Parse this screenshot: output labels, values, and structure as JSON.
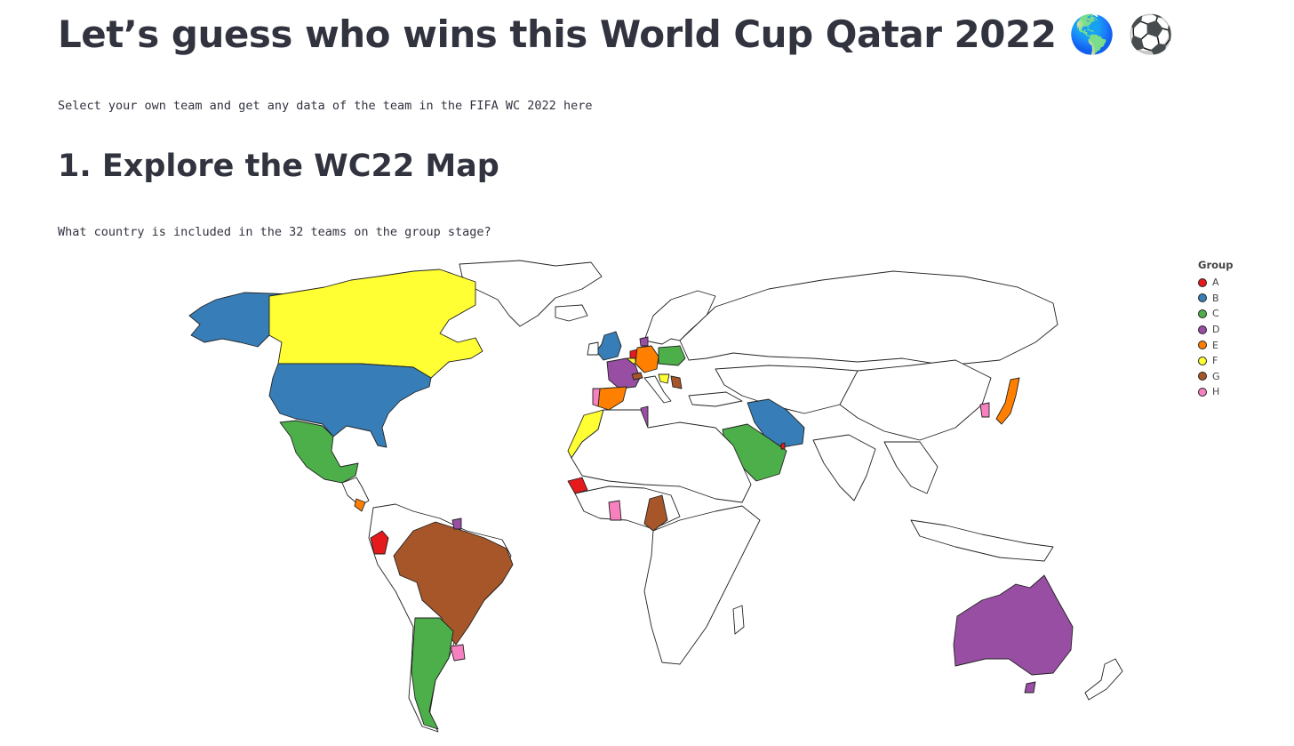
{
  "page": {
    "title": "Let’s guess who wins this World Cup Qatar 2022 🌎 ⚽",
    "intro": "Select your own team and get any data of the team in the FIFA WC 2022 here",
    "section_heading": "1. Explore the WC22 Map",
    "question": "What country is included in the 32 teams on the group stage?"
  },
  "legend": {
    "title": "Group",
    "items": [
      {
        "label": "A",
        "color": "#e41a1c"
      },
      {
        "label": "B",
        "color": "#377eb8"
      },
      {
        "label": "C",
        "color": "#4daf4a"
      },
      {
        "label": "D",
        "color": "#984ea3"
      },
      {
        "label": "E",
        "color": "#ff7f00"
      },
      {
        "label": "F",
        "color": "#ffff33"
      },
      {
        "label": "G",
        "color": "#a65628"
      },
      {
        "label": "H",
        "color": "#f781bf"
      }
    ]
  },
  "map": {
    "type": "choropleth",
    "groups": {
      "A": [
        "Qatar",
        "Ecuador",
        "Senegal",
        "Netherlands"
      ],
      "B": [
        "England",
        "Iran",
        "USA",
        "Wales"
      ],
      "C": [
        "Argentina",
        "Saudi Arabia",
        "Mexico",
        "Poland"
      ],
      "D": [
        "France",
        "Australia",
        "Denmark",
        "Tunisia"
      ],
      "E": [
        "Spain",
        "Costa Rica",
        "Germany",
        "Japan"
      ],
      "F": [
        "Belgium",
        "Canada",
        "Morocco",
        "Croatia"
      ],
      "G": [
        "Brazil",
        "Serbia",
        "Switzerland",
        "Cameroon"
      ],
      "H": [
        "Portugal",
        "Ghana",
        "Uruguay",
        "South Korea"
      ]
    }
  }
}
